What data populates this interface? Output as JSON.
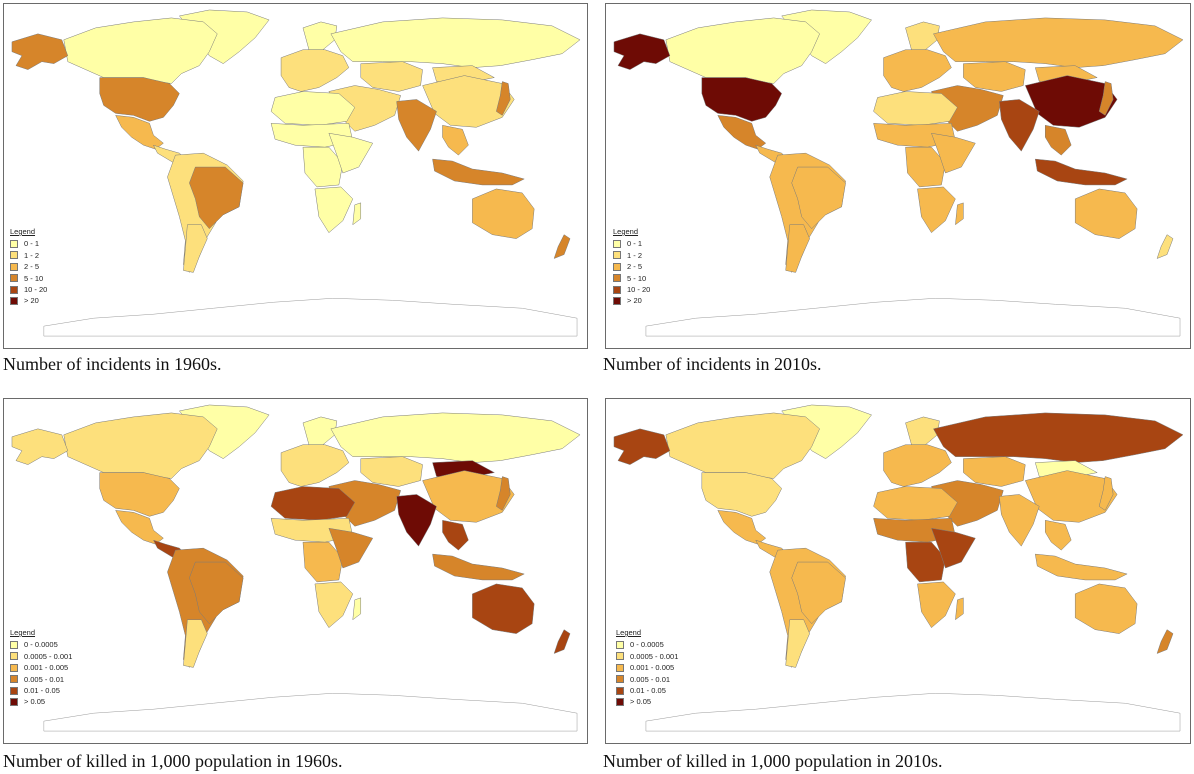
{
  "colors": {
    "c0": "#ffffa6",
    "c1": "#fde07c",
    "c2": "#f6b94e",
    "c3": "#d6852a",
    "c4": "#a84512",
    "c5": "#6e0b05",
    "ocean": "#ffffff",
    "antarctica": "#ffffff",
    "border": "#7a7a7a"
  },
  "panels": [
    {
      "caption": "Number of incidents in 1960s.",
      "legend": {
        "title": "Legend",
        "items": [
          {
            "label": "0 - 1",
            "color": "#ffffa6"
          },
          {
            "label": "1 - 2",
            "color": "#fde07c"
          },
          {
            "label": "2 - 5",
            "color": "#f6b94e"
          },
          {
            "label": "5 - 10",
            "color": "#d6852a"
          },
          {
            "label": "10 - 20",
            "color": "#a84512"
          },
          {
            "label": "> 20",
            "color": "#6e0b05"
          }
        ]
      },
      "regions": {
        "alaska": 3,
        "canada": 0,
        "greenland": 0,
        "usa": 3,
        "mexico": 2,
        "central_america": 1,
        "south_america": 1,
        "brazil": 3,
        "argentina": 1,
        "europe": 1,
        "scandinavia": 0,
        "russia": 0,
        "central_asia": 1,
        "middle_east": 1,
        "north_africa": 0,
        "sahel": 0,
        "central_africa": 0,
        "east_africa": 0,
        "southern_africa": 0,
        "madagascar": 0,
        "china": 1,
        "mongolia": 1,
        "india": 3,
        "southeast_asia": 2,
        "indonesia": 3,
        "japan": 3,
        "australia": 2,
        "new_zealand": 3
      }
    },
    {
      "caption": "Number of incidents in 2010s.",
      "legend": {
        "title": "Legend",
        "items": [
          {
            "label": "0 - 1",
            "color": "#ffffa6"
          },
          {
            "label": "1 - 2",
            "color": "#fde07c"
          },
          {
            "label": "2 - 5",
            "color": "#f6b94e"
          },
          {
            "label": "5 - 10",
            "color": "#d6852a"
          },
          {
            "label": "10 - 20",
            "color": "#a84512"
          },
          {
            "label": "> 20",
            "color": "#6e0b05"
          }
        ]
      },
      "regions": {
        "alaska": 5,
        "canada": 0,
        "greenland": 0,
        "usa": 5,
        "mexico": 3,
        "central_america": 2,
        "south_america": 2,
        "brazil": 2,
        "argentina": 2,
        "europe": 2,
        "scandinavia": 1,
        "russia": 2,
        "central_asia": 2,
        "middle_east": 3,
        "north_africa": 1,
        "sahel": 2,
        "central_africa": 2,
        "east_africa": 2,
        "southern_africa": 2,
        "madagascar": 2,
        "china": 5,
        "mongolia": 2,
        "india": 4,
        "southeast_asia": 3,
        "indonesia": 4,
        "japan": 3,
        "australia": 2,
        "new_zealand": 1
      }
    },
    {
      "caption": "Number of killed in 1,000 population in 1960s.",
      "legend": {
        "title": "Legend",
        "items": [
          {
            "label": "0 - 0.0005",
            "color": "#ffffa6"
          },
          {
            "label": "0.0005 - 0.001",
            "color": "#fde07c"
          },
          {
            "label": "0.001 - 0.005",
            "color": "#f6b94e"
          },
          {
            "label": "0.005 - 0.01",
            "color": "#d6852a"
          },
          {
            "label": "0.01 - 0.05",
            "color": "#a84512"
          },
          {
            "label": "> 0.05",
            "color": "#6e0b05"
          }
        ]
      },
      "regions": {
        "alaska": 1,
        "canada": 1,
        "greenland": 0,
        "usa": 2,
        "mexico": 2,
        "central_america": 4,
        "south_america": 3,
        "brazil": 3,
        "argentina": 1,
        "europe": 1,
        "scandinavia": 0,
        "russia": 0,
        "central_asia": 1,
        "middle_east": 3,
        "north_africa": 4,
        "sahel": 1,
        "central_africa": 2,
        "east_africa": 3,
        "southern_africa": 1,
        "madagascar": 0,
        "china": 2,
        "mongolia": 5,
        "india": 5,
        "southeast_asia": 4,
        "indonesia": 3,
        "japan": 3,
        "australia": 4,
        "new_zealand": 4
      }
    },
    {
      "caption": "Number of killed in 1,000 population in 2010s.",
      "legend": {
        "title": "Legend",
        "items": [
          {
            "label": "0 - 0.0005",
            "color": "#ffffa6"
          },
          {
            "label": "0.0005 - 0.001",
            "color": "#fde07c"
          },
          {
            "label": "0.001 - 0.005",
            "color": "#f6b94e"
          },
          {
            "label": "0.005 - 0.01",
            "color": "#d6852a"
          },
          {
            "label": "0.01 - 0.05",
            "color": "#a84512"
          },
          {
            "label": "> 0.05",
            "color": "#6e0b05"
          }
        ]
      },
      "regions": {
        "alaska": 4,
        "canada": 1,
        "greenland": 0,
        "usa": 1,
        "mexico": 2,
        "central_america": 2,
        "south_america": 2,
        "brazil": 2,
        "argentina": 1,
        "europe": 2,
        "scandinavia": 1,
        "russia": 4,
        "central_asia": 2,
        "middle_east": 3,
        "north_africa": 2,
        "sahel": 3,
        "central_africa": 4,
        "east_africa": 4,
        "southern_africa": 2,
        "madagascar": 2,
        "china": 2,
        "mongolia": 0,
        "india": 2,
        "southeast_asia": 2,
        "indonesia": 2,
        "japan": 2,
        "australia": 2,
        "new_zealand": 3
      }
    }
  ]
}
